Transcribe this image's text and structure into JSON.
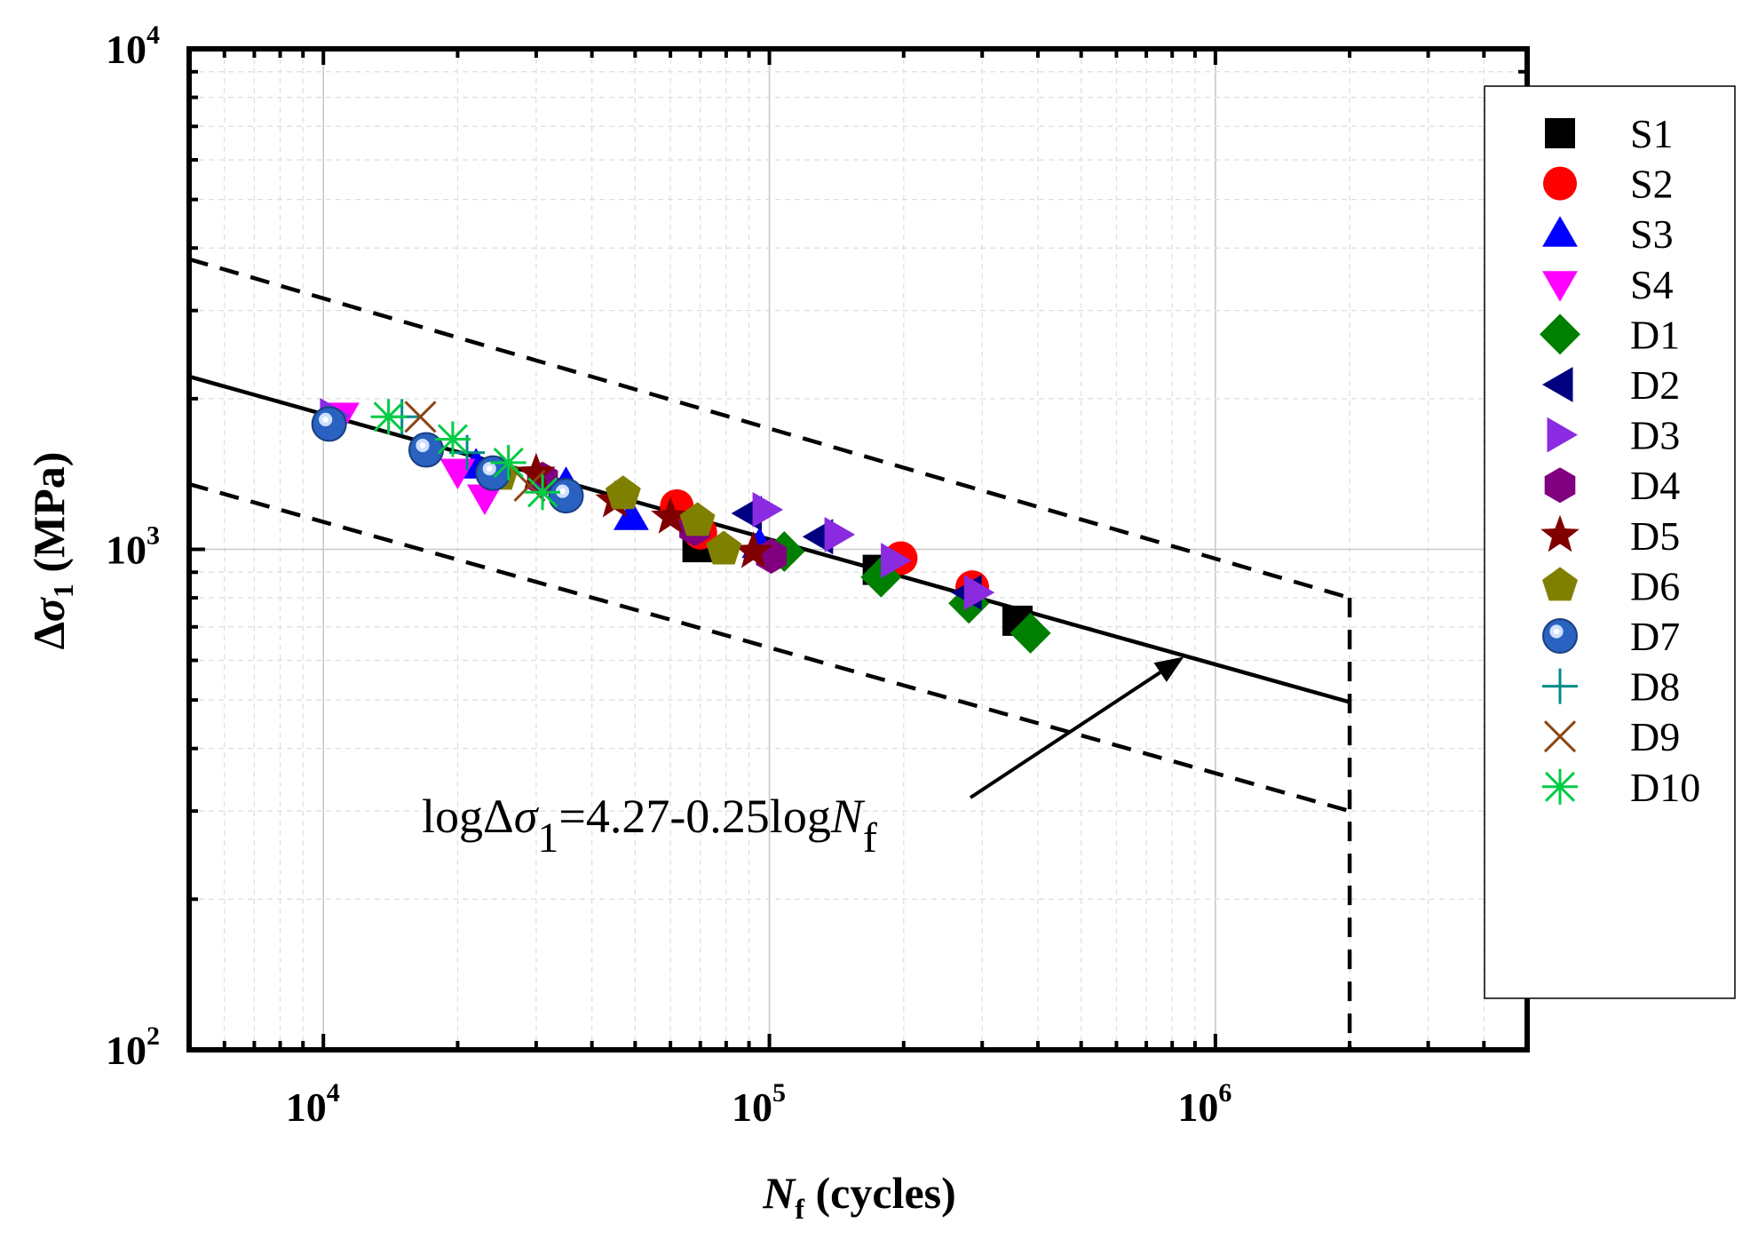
{
  "chart_data": {
    "type": "scatter",
    "title": "",
    "xlabel": {
      "main": "N",
      "sub": "f",
      "rest": " (cycles)"
    },
    "ylabel": {
      "pre": "Δ",
      "sym": "σ",
      "sub": "1",
      "rest": " (MPa)"
    },
    "x_scale": "log",
    "y_scale": "log",
    "xlim": [
      5000,
      5000000
    ],
    "ylim": [
      100,
      10000
    ],
    "grid": true,
    "legend_position": "right",
    "x_ticks": [
      {
        "value": 10000,
        "base": "10",
        "exp": "4"
      },
      {
        "value": 100000,
        "base": "10",
        "exp": "5"
      },
      {
        "value": 1000000,
        "base": "10",
        "exp": "6"
      }
    ],
    "y_ticks": [
      {
        "value": 100,
        "base": "10",
        "exp": "2"
      },
      {
        "value": 1000,
        "base": "10",
        "exp": "3"
      },
      {
        "value": 10000,
        "base": "10",
        "exp": "4"
      }
    ],
    "fit_line": {
      "intercept": 4.27,
      "slope": -0.25,
      "x_range": [
        5000,
        2000000
      ]
    },
    "upper_bound": {
      "points": [
        [
          5000,
          3800
        ],
        [
          2000000,
          800
        ]
      ]
    },
    "lower_bound": {
      "points": [
        [
          5000,
          1350
        ],
        [
          2000000,
          300
        ]
      ]
    },
    "cutoff": {
      "x": 2000000,
      "y_range": [
        100,
        800
      ]
    },
    "annotation": {
      "prefix": "logΔ",
      "sym": "σ",
      "sub": "1",
      "mid": "=4.27-0.25log",
      "n": "N",
      "nsub": "f",
      "arrow_to": [
        850000,
        610
      ]
    },
    "series": [
      {
        "name": "S1",
        "marker": "square",
        "color": "#000000",
        "points": [
          [
            69000,
            1010
          ],
          [
            175000,
            910
          ],
          [
            360000,
            720
          ]
        ]
      },
      {
        "name": "S2",
        "marker": "circle",
        "color": "#ff0000",
        "points": [
          [
            62000,
            1220
          ],
          [
            70000,
            1080
          ],
          [
            197000,
            960
          ],
          [
            285000,
            840
          ]
        ]
      },
      {
        "name": "S3",
        "marker": "triangle-up",
        "color": "#0000ff",
        "points": [
          [
            22000,
            1470
          ],
          [
            35000,
            1350
          ],
          [
            49000,
            1160
          ],
          [
            95000,
            1020
          ]
        ]
      },
      {
        "name": "S4",
        "marker": "triangle-down",
        "color": "#ff00ff",
        "points": [
          [
            11000,
            1850
          ],
          [
            20000,
            1430
          ],
          [
            23000,
            1270
          ]
        ]
      },
      {
        "name": "D1",
        "marker": "diamond",
        "color": "#008000",
        "points": [
          [
            108000,
            990
          ],
          [
            178000,
            880
          ],
          [
            280000,
            780
          ],
          [
            385000,
            680
          ]
        ]
      },
      {
        "name": "D2",
        "marker": "triangle-left",
        "color": "#000080",
        "points": [
          [
            90000,
            1180
          ],
          [
            130000,
            1060
          ],
          [
            280000,
            820
          ]
        ]
      },
      {
        "name": "D3",
        "marker": "triangle-right",
        "color": "#8a2be2",
        "points": [
          [
            10500,
            1850
          ],
          [
            98000,
            1200
          ],
          [
            142000,
            1070
          ],
          [
            190000,
            950
          ],
          [
            292000,
            820
          ]
        ]
      },
      {
        "name": "D4",
        "marker": "hexagon",
        "color": "#800080",
        "points": [
          [
            31000,
            1380
          ],
          [
            68000,
            1100
          ],
          [
            101000,
            970
          ]
        ]
      },
      {
        "name": "D5",
        "marker": "star",
        "color": "#800000",
        "points": [
          [
            30000,
            1420
          ],
          [
            45000,
            1250
          ],
          [
            60000,
            1160
          ],
          [
            92000,
            990
          ]
        ]
      },
      {
        "name": "D6",
        "marker": "pentagon",
        "color": "#808000",
        "points": [
          [
            25000,
            1410
          ],
          [
            47000,
            1290
          ],
          [
            69000,
            1140
          ],
          [
            79000,
            1000
          ]
        ]
      },
      {
        "name": "D7",
        "marker": "ball",
        "color": "#2962c0",
        "points": [
          [
            10300,
            1780
          ],
          [
            17000,
            1580
          ],
          [
            24000,
            1420
          ],
          [
            35000,
            1280
          ]
        ]
      },
      {
        "name": "D8",
        "marker": "plus",
        "color": "#008b8b",
        "points": [
          [
            15000,
            1840
          ],
          [
            21000,
            1560
          ]
        ]
      },
      {
        "name": "D9",
        "marker": "x",
        "color": "#8b4513",
        "points": [
          [
            16500,
            1840
          ],
          [
            29000,
            1340
          ]
        ]
      },
      {
        "name": "D10",
        "marker": "asterisk",
        "color": "#00cc44",
        "points": [
          [
            14000,
            1840
          ],
          [
            19500,
            1660
          ],
          [
            26000,
            1490
          ],
          [
            31000,
            1300
          ]
        ]
      }
    ]
  }
}
